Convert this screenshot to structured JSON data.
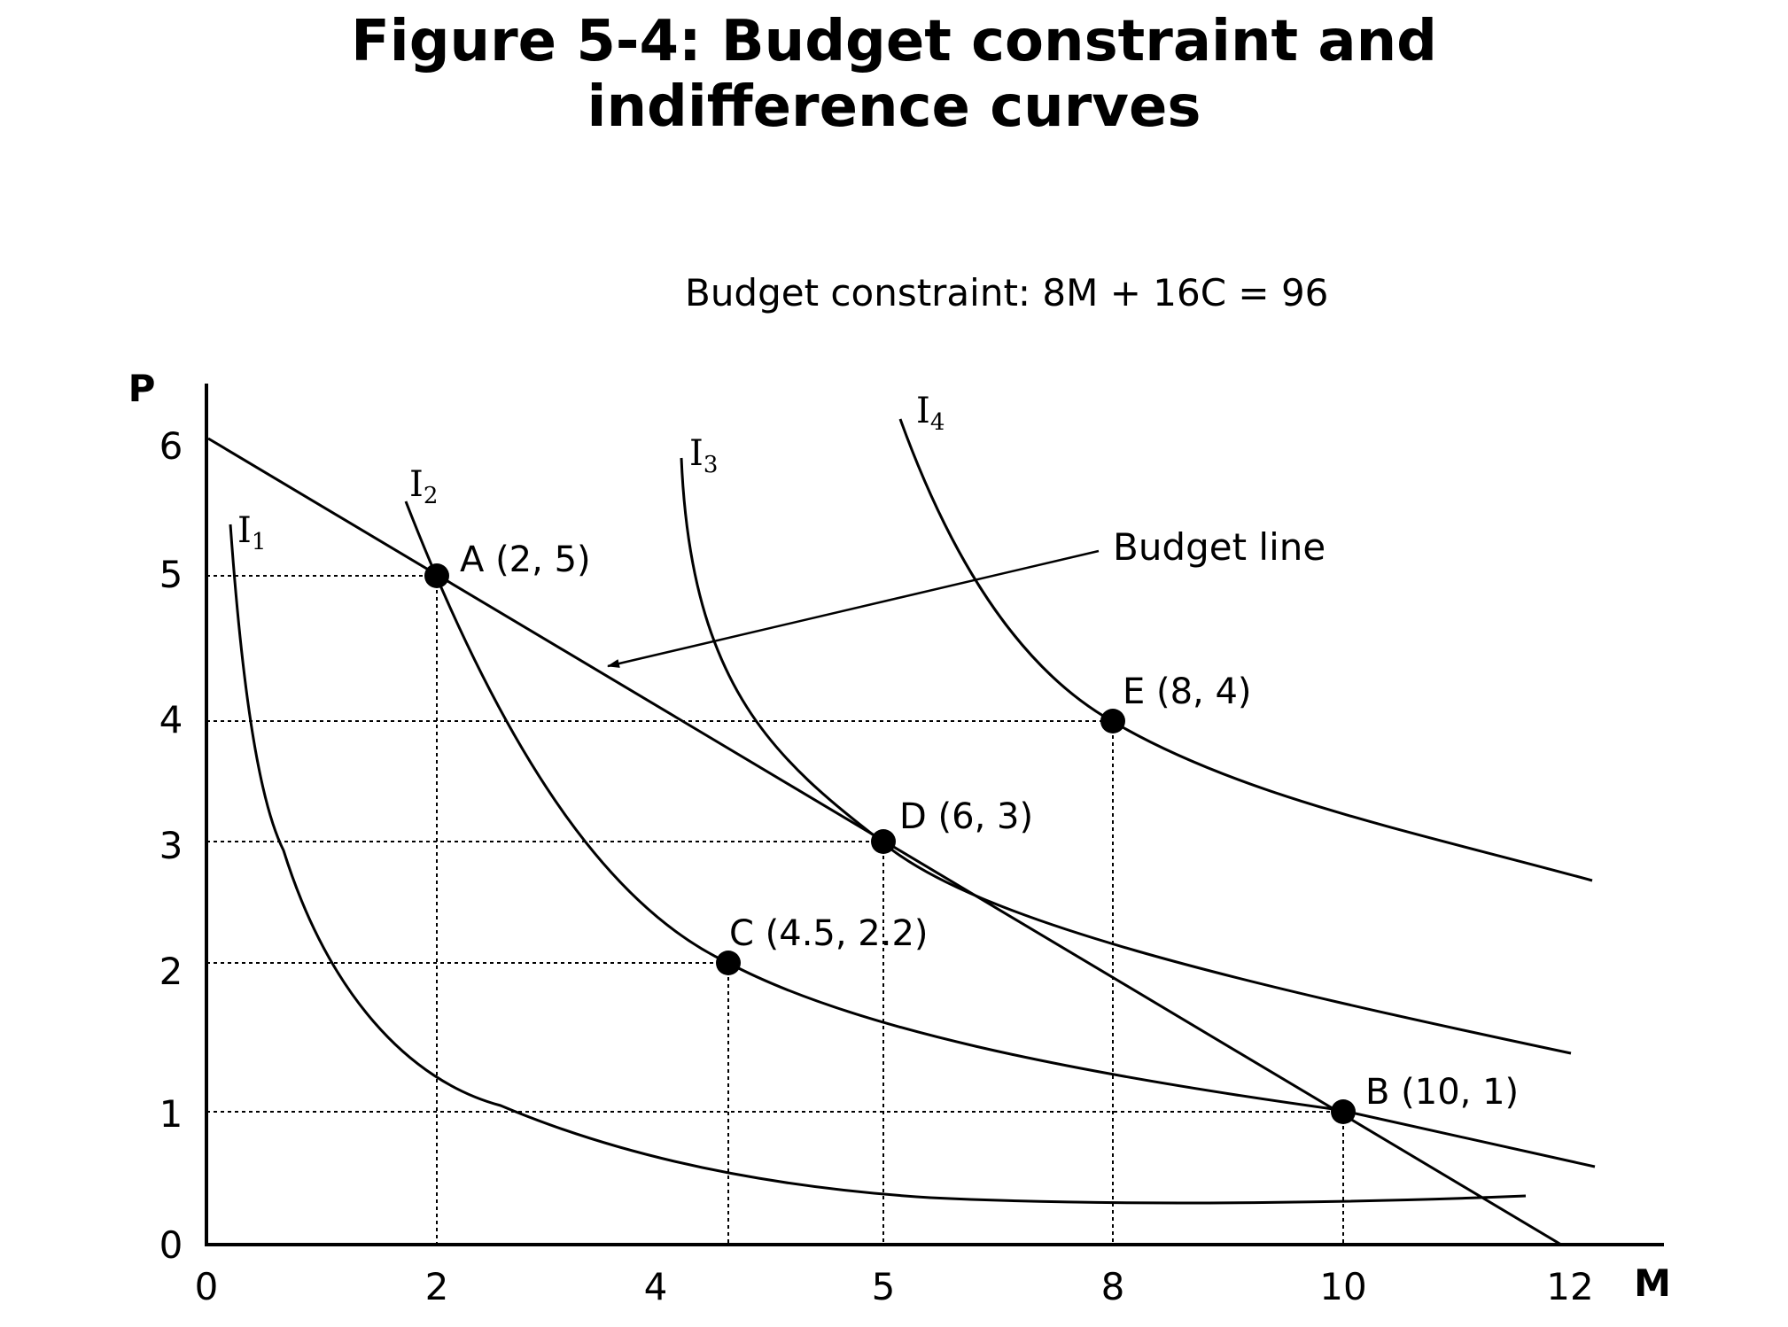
{
  "title_lines": [
    "Figure 5-4: Budget constraint and",
    "indifference curves"
  ],
  "chart_data": {
    "type": "line",
    "title": "Figure 5-4: Budget constraint and indifference curves",
    "subtitle": "Budget constraint: 8M + 16C = 96",
    "xlabel": "M",
    "ylabel": "P",
    "x_ticks": [
      "0",
      "2",
      "4",
      "5",
      "8",
      "10",
      "12"
    ],
    "y_ticks": [
      "0",
      "1",
      "2",
      "3",
      "4",
      "5",
      "6"
    ],
    "budget_line": {
      "label": "Budget line",
      "from": [
        0,
        6
      ],
      "to": [
        12,
        0
      ]
    },
    "points": [
      {
        "name": "A",
        "label": "A (2, 5)",
        "x": 2,
        "y": 5
      },
      {
        "name": "B",
        "label": "B (10, 1)",
        "x": 10,
        "y": 1
      },
      {
        "name": "C",
        "label": "C (4.5, 2.2)",
        "x": 4.5,
        "y": 2.2
      },
      {
        "name": "D",
        "label": "D (6, 3)",
        "x": 6,
        "y": 3
      },
      {
        "name": "E",
        "label": "E (8, 4)",
        "x": 8,
        "y": 4
      }
    ],
    "indifference_curves": [
      {
        "name": "I1",
        "letter": "I",
        "subscript": "1"
      },
      {
        "name": "I2",
        "letter": "I",
        "subscript": "2"
      },
      {
        "name": "I3",
        "letter": "I",
        "subscript": "3"
      },
      {
        "name": "I4",
        "letter": "I",
        "subscript": "4"
      }
    ]
  }
}
